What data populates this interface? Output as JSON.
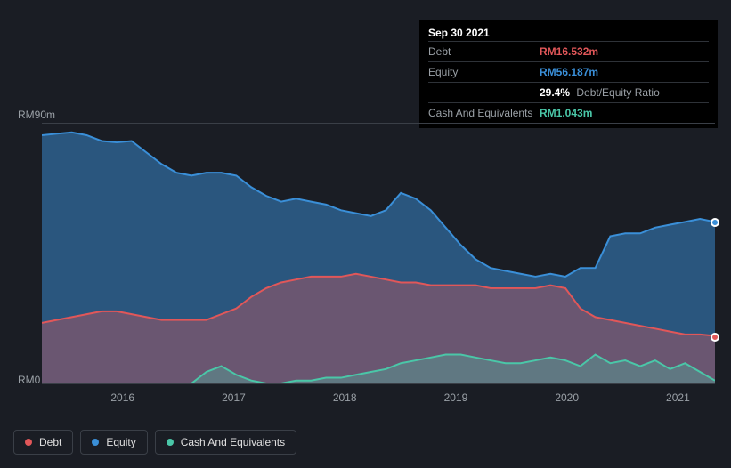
{
  "background_color": "#1a1d24",
  "tooltip": {
    "date": "Sep 30 2021",
    "debt_label": "Debt",
    "debt_value": "RM16.532m",
    "equity_label": "Equity",
    "equity_value": "RM56.187m",
    "ratio_value": "29.4%",
    "ratio_label": "Debt/Equity Ratio",
    "cash_label": "Cash And Equivalents",
    "cash_value": "RM1.043m"
  },
  "chart": {
    "type": "area",
    "ylabel_top": "RM90m",
    "ylabel_bottom": "RM0",
    "ymax": 90,
    "ymin": 0,
    "x_years": [
      "2016",
      "2017",
      "2018",
      "2019",
      "2020",
      "2021"
    ],
    "x_year_positions_pct": [
      12,
      28.5,
      45,
      61.5,
      78,
      94.5
    ],
    "series": {
      "equity": {
        "label": "Equity",
        "color": "#3a8fd8",
        "fill_opacity": 0.5,
        "values": [
          86,
          86.5,
          87,
          86,
          84,
          83.5,
          84,
          80,
          76,
          73,
          72,
          73,
          73,
          72,
          68,
          65,
          63,
          64,
          63,
          62,
          60,
          59,
          58,
          60,
          66,
          64,
          60,
          54,
          48,
          43,
          40,
          39,
          38,
          37,
          38,
          37,
          40,
          40,
          51,
          52,
          52,
          54,
          55,
          56,
          57,
          56
        ]
      },
      "debt": {
        "label": "Debt",
        "color": "#e15759",
        "fill_opacity": 0.35,
        "values": [
          21,
          22,
          23,
          24,
          25,
          25,
          24,
          23,
          22,
          22,
          22,
          22,
          24,
          26,
          30,
          33,
          35,
          36,
          37,
          37,
          37,
          38,
          37,
          36,
          35,
          35,
          34,
          34,
          34,
          34,
          33,
          33,
          33,
          33,
          34,
          33,
          26,
          23,
          22,
          21,
          20,
          19,
          18,
          17,
          17,
          16.5
        ]
      },
      "cash": {
        "label": "Cash And Equivalents",
        "color": "#4ac7a8",
        "fill_opacity": 0.3,
        "values": [
          0,
          0,
          0,
          0,
          0,
          0,
          0,
          0,
          0,
          0,
          0,
          4,
          6,
          3,
          1,
          0,
          0,
          1,
          1,
          2,
          2,
          3,
          4,
          5,
          7,
          8,
          9,
          10,
          10,
          9,
          8,
          7,
          7,
          8,
          9,
          8,
          6,
          10,
          7,
          8,
          6,
          8,
          5,
          7,
          4,
          1
        ]
      }
    },
    "markers": {
      "equity": 56,
      "debt": 16.5
    }
  },
  "legend": {
    "debt": "Debt",
    "equity": "Equity",
    "cash": "Cash And Equivalents"
  },
  "colors": {
    "debt": "#e15759",
    "equity": "#3a8fd8",
    "cash": "#4ac7a8",
    "axis_text": "#9aa0a6",
    "grid": "#3a3f47"
  }
}
